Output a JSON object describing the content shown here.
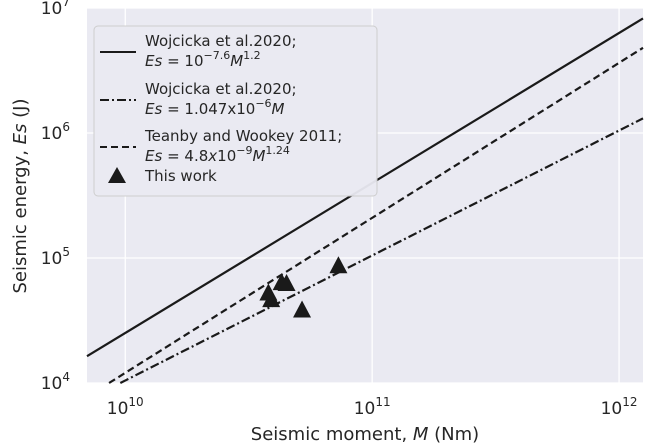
{
  "chart_data": {
    "type": "line",
    "xscale": "log",
    "yscale": "log",
    "xlim": [
      7000000000.0,
      1250000000000.0
    ],
    "ylim": [
      10000,
      10000000
    ],
    "xlabel": "Seismic moment, M (Nm)",
    "ylabel": "Seismic energy, Es (J)",
    "grid": true,
    "legend_position": "top-left",
    "x_ticks": [
      {
        "value": 10000000000.0,
        "base": "10",
        "exp": "10"
      },
      {
        "value": 100000000000.0,
        "base": "10",
        "exp": "11"
      },
      {
        "value": 1000000000000.0,
        "base": "10",
        "exp": "12"
      }
    ],
    "y_ticks": [
      {
        "value": 10000,
        "base": "10",
        "exp": "4"
      },
      {
        "value": 100000,
        "base": "10",
        "exp": "5"
      },
      {
        "value": 1000000,
        "base": "10",
        "exp": "6"
      },
      {
        "value": 10000000,
        "base": "10",
        "exp": "7"
      }
    ],
    "series": [
      {
        "name": "Wojcicka et al.2020; Es = 10^-7.6 M^1.2",
        "style": "solid",
        "coef": 2.512e-08,
        "exponent": 1.2
      },
      {
        "name": "Wojcicka et al.2020; Es = 1.047x10^-6 M",
        "style": "dashdot",
        "coef": 1.047e-06,
        "exponent": 1.0
      },
      {
        "name": "Teanby and Wookey 2011; Es = 4.8x10^-9 M^1.24",
        "style": "dashed",
        "coef": 4.8e-09,
        "exponent": 1.24
      }
    ],
    "points": {
      "name": "This work",
      "marker": "triangle",
      "data": [
        {
          "x": 38000000000.0,
          "y": 52000
        },
        {
          "x": 39000000000.0,
          "y": 46000
        },
        {
          "x": 43000000000.0,
          "y": 63000
        },
        {
          "x": 45000000000.0,
          "y": 62000
        },
        {
          "x": 52000000000.0,
          "y": 38000
        },
        {
          "x": 73000000000.0,
          "y": 86000
        }
      ]
    },
    "legend": [
      {
        "line1": "Wojcicka et al.2020;",
        "line2": "Es = 10^-7.6 M^1.2"
      },
      {
        "line1": "Wojcicka et al.2020;",
        "line2": "Es = 1.047x10^-6 M"
      },
      {
        "line1": "Teanby and Wookey 2011;",
        "line2": "Es = 4.8x10^-9 M^1.24"
      },
      {
        "line1": "This work"
      }
    ],
    "colors": {
      "plot_bg": "#eaeaf2",
      "grid": "#ffffff",
      "ink": "#1a1a1a",
      "text": "#262626"
    }
  }
}
